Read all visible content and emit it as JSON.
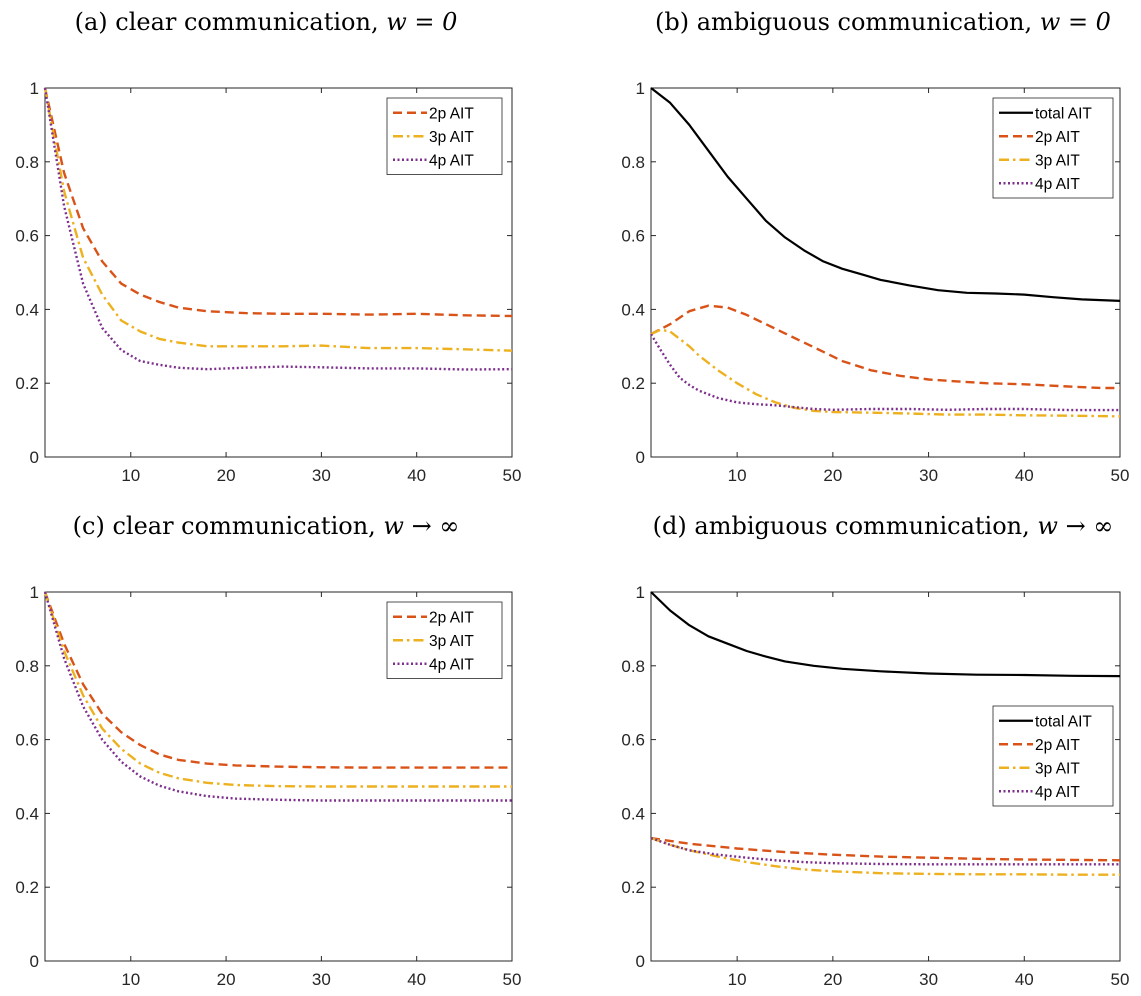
{
  "colors": {
    "total": "#000000",
    "2p": "#D95319",
    "3p": "#EDB120",
    "4p": "#7E2F8E"
  },
  "chart_data": [
    {
      "id": "a",
      "type": "line",
      "title_text": "(a) clear communication, ",
      "title_math": "w = 0",
      "xlim": [
        1,
        50
      ],
      "ylim": [
        0,
        1
      ],
      "xticks": [
        10,
        20,
        30,
        40,
        50
      ],
      "yticks": [
        0,
        0.2,
        0.4,
        0.6,
        0.8,
        1
      ],
      "ytick_labels": [
        "0",
        "0.2",
        "0.4",
        "0.6",
        "0.8",
        "1"
      ],
      "xtick_labels": [
        "10",
        "20",
        "30",
        "40",
        "50"
      ],
      "legend_position": "top-right",
      "series": [
        {
          "name": "2p AIT",
          "style": "dashed",
          "color_key": "2p",
          "x": [
            1,
            3,
            5,
            7,
            9,
            11,
            13,
            15,
            18,
            22,
            26,
            30,
            35,
            40,
            45,
            50
          ],
          "y": [
            1.0,
            0.77,
            0.62,
            0.53,
            0.47,
            0.44,
            0.42,
            0.405,
            0.395,
            0.39,
            0.388,
            0.388,
            0.386,
            0.388,
            0.384,
            0.382
          ]
        },
        {
          "name": "3p AIT",
          "style": "dashdot",
          "color_key": "3p",
          "x": [
            1,
            3,
            5,
            7,
            9,
            11,
            13,
            15,
            18,
            22,
            26,
            30,
            35,
            40,
            45,
            50
          ],
          "y": [
            1.0,
            0.72,
            0.54,
            0.44,
            0.37,
            0.34,
            0.32,
            0.31,
            0.3,
            0.3,
            0.3,
            0.302,
            0.295,
            0.295,
            0.292,
            0.288
          ]
        },
        {
          "name": "4p AIT",
          "style": "dotted",
          "color_key": "4p",
          "x": [
            1,
            3,
            5,
            7,
            9,
            11,
            13,
            15,
            18,
            22,
            26,
            30,
            35,
            40,
            45,
            50
          ],
          "y": [
            1.0,
            0.68,
            0.47,
            0.35,
            0.29,
            0.26,
            0.25,
            0.242,
            0.238,
            0.242,
            0.245,
            0.243,
            0.24,
            0.24,
            0.237,
            0.238
          ]
        }
      ]
    },
    {
      "id": "b",
      "type": "line",
      "title_text": "(b) ambiguous communication, ",
      "title_math": "w = 0",
      "xlim": [
        1,
        50
      ],
      "ylim": [
        0,
        1
      ],
      "xticks": [
        10,
        20,
        30,
        40,
        50
      ],
      "yticks": [
        0,
        0.2,
        0.4,
        0.6,
        0.8,
        1
      ],
      "ytick_labels": [
        "0",
        "0.2",
        "0.4",
        "0.6",
        "0.8",
        "1"
      ],
      "xtick_labels": [
        "10",
        "20",
        "30",
        "40",
        "50"
      ],
      "legend_position": "top-right",
      "series": [
        {
          "name": "total AIT",
          "style": "solid",
          "color_key": "total",
          "x": [
            1,
            3,
            5,
            7,
            9,
            11,
            13,
            15,
            17,
            19,
            21,
            23,
            25,
            28,
            31,
            34,
            37,
            40,
            43,
            46,
            50
          ],
          "y": [
            1.0,
            0.96,
            0.9,
            0.83,
            0.76,
            0.7,
            0.64,
            0.595,
            0.56,
            0.53,
            0.51,
            0.495,
            0.48,
            0.465,
            0.452,
            0.445,
            0.443,
            0.44,
            0.433,
            0.427,
            0.423
          ]
        },
        {
          "name": "2p AIT",
          "style": "dashed",
          "color_key": "2p",
          "x": [
            1,
            3,
            5,
            7,
            9,
            11,
            13,
            15,
            17,
            19,
            21,
            24,
            27,
            30,
            33,
            36,
            40,
            44,
            48,
            50
          ],
          "y": [
            0.333,
            0.36,
            0.395,
            0.41,
            0.405,
            0.385,
            0.36,
            0.335,
            0.31,
            0.285,
            0.26,
            0.235,
            0.22,
            0.21,
            0.205,
            0.2,
            0.197,
            0.192,
            0.187,
            0.187
          ]
        },
        {
          "name": "3p AIT",
          "style": "dashdot",
          "color_key": "3p",
          "x": [
            1,
            2,
            3,
            4,
            5,
            6,
            8,
            10,
            12,
            14,
            16,
            18,
            20,
            24,
            28,
            32,
            36,
            40,
            45,
            50
          ],
          "y": [
            0.333,
            0.345,
            0.34,
            0.32,
            0.3,
            0.275,
            0.235,
            0.2,
            0.17,
            0.148,
            0.133,
            0.125,
            0.122,
            0.12,
            0.118,
            0.115,
            0.115,
            0.113,
            0.112,
            0.11
          ]
        },
        {
          "name": "4p AIT",
          "style": "dotted",
          "color_key": "4p",
          "x": [
            1,
            2,
            3,
            4,
            5,
            6,
            8,
            10,
            12,
            14,
            16,
            18,
            20,
            24,
            28,
            32,
            36,
            40,
            45,
            50
          ],
          "y": [
            0.333,
            0.29,
            0.25,
            0.215,
            0.195,
            0.18,
            0.16,
            0.148,
            0.143,
            0.14,
            0.135,
            0.13,
            0.128,
            0.13,
            0.13,
            0.128,
            0.13,
            0.13,
            0.127,
            0.127
          ]
        }
      ]
    },
    {
      "id": "c",
      "type": "line",
      "title_text": "(c) clear communication, ",
      "title_math": "w → ∞",
      "xlim": [
        1,
        50
      ],
      "ylim": [
        0,
        1
      ],
      "xticks": [
        10,
        20,
        30,
        40,
        50
      ],
      "yticks": [
        0,
        0.2,
        0.4,
        0.6,
        0.8,
        1
      ],
      "ytick_labels": [
        "0",
        "0.2",
        "0.4",
        "0.6",
        "0.8",
        "1"
      ],
      "xtick_labels": [
        "10",
        "20",
        "30",
        "40",
        "50"
      ],
      "legend_position": "top-right",
      "series": [
        {
          "name": "2p AIT",
          "style": "dashed",
          "color_key": "2p",
          "x": [
            1,
            3,
            5,
            7,
            9,
            11,
            13,
            15,
            18,
            21,
            25,
            30,
            35,
            40,
            45,
            50
          ],
          "y": [
            1.0,
            0.86,
            0.75,
            0.67,
            0.62,
            0.585,
            0.56,
            0.545,
            0.535,
            0.53,
            0.527,
            0.525,
            0.524,
            0.524,
            0.524,
            0.524
          ]
        },
        {
          "name": "3p AIT",
          "style": "dashdot",
          "color_key": "3p",
          "x": [
            1,
            3,
            5,
            7,
            9,
            11,
            13,
            15,
            18,
            21,
            25,
            30,
            35,
            40,
            45,
            50
          ],
          "y": [
            1.0,
            0.84,
            0.72,
            0.63,
            0.575,
            0.535,
            0.51,
            0.495,
            0.483,
            0.477,
            0.474,
            0.473,
            0.473,
            0.473,
            0.473,
            0.473
          ]
        },
        {
          "name": "4p AIT",
          "style": "dotted",
          "color_key": "4p",
          "x": [
            1,
            3,
            5,
            7,
            9,
            11,
            13,
            15,
            18,
            21,
            25,
            30,
            35,
            40,
            45,
            50
          ],
          "y": [
            1.0,
            0.82,
            0.69,
            0.6,
            0.54,
            0.5,
            0.475,
            0.46,
            0.447,
            0.44,
            0.437,
            0.435,
            0.435,
            0.435,
            0.435,
            0.435
          ]
        }
      ]
    },
    {
      "id": "d",
      "type": "line",
      "title_text": "(d) ambiguous communication, ",
      "title_math": "w → ∞",
      "xlim": [
        1,
        50
      ],
      "ylim": [
        0,
        1
      ],
      "xticks": [
        10,
        20,
        30,
        40,
        50
      ],
      "yticks": [
        0,
        0.2,
        0.4,
        0.6,
        0.8,
        1
      ],
      "ytick_labels": [
        "0",
        "0.2",
        "0.4",
        "0.6",
        "0.8",
        "1"
      ],
      "xtick_labels": [
        "10",
        "20",
        "30",
        "40",
        "50"
      ],
      "legend_position": "center-right",
      "series": [
        {
          "name": "total AIT",
          "style": "solid",
          "color_key": "total",
          "x": [
            1,
            3,
            5,
            7,
            9,
            11,
            13,
            15,
            18,
            21,
            25,
            30,
            35,
            40,
            45,
            50
          ],
          "y": [
            1.0,
            0.95,
            0.91,
            0.88,
            0.86,
            0.84,
            0.825,
            0.812,
            0.8,
            0.792,
            0.785,
            0.779,
            0.776,
            0.775,
            0.773,
            0.772
          ]
        },
        {
          "name": "2p AIT",
          "style": "dashed",
          "color_key": "2p",
          "x": [
            1,
            5,
            10,
            15,
            20,
            25,
            30,
            35,
            40,
            45,
            50
          ],
          "y": [
            0.333,
            0.318,
            0.305,
            0.295,
            0.288,
            0.283,
            0.28,
            0.277,
            0.275,
            0.274,
            0.273
          ]
        },
        {
          "name": "3p AIT",
          "style": "dashdot",
          "color_key": "3p",
          "x": [
            1,
            3,
            5,
            8,
            11,
            14,
            17,
            20,
            25,
            30,
            35,
            40,
            45,
            50
          ],
          "y": [
            0.333,
            0.315,
            0.3,
            0.283,
            0.268,
            0.257,
            0.248,
            0.243,
            0.238,
            0.236,
            0.235,
            0.235,
            0.234,
            0.234
          ]
        },
        {
          "name": "4p AIT",
          "style": "dotted",
          "color_key": "4p",
          "x": [
            1,
            3,
            5,
            8,
            11,
            14,
            17,
            20,
            25,
            30,
            35,
            40,
            45,
            50
          ],
          "y": [
            0.333,
            0.315,
            0.3,
            0.288,
            0.28,
            0.273,
            0.268,
            0.265,
            0.263,
            0.262,
            0.262,
            0.262,
            0.262,
            0.262
          ]
        }
      ]
    }
  ]
}
